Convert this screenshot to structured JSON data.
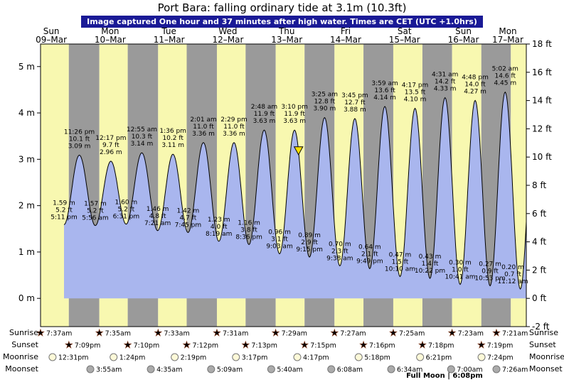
{
  "title": "Port Bara: falling  ordinary tide at 3.1m (10.3ft)",
  "subtitle": "Image captured One hour and 37 minutes after high water. Times are CET (UTC +1.0hrs)",
  "full_moon": "Full Moon | 6:08pm",
  "row_labels": {
    "sunrise": "Sunrise",
    "sunset": "Sunset",
    "moonrise": "Moonrise",
    "moonset": "Moonset"
  },
  "almanac": {
    "sunrise": [
      "7:37am",
      "7:35am",
      "7:33am",
      "7:31am",
      "7:29am",
      "7:27am",
      "7:25am",
      "7:23am",
      "7:21am"
    ],
    "sunset": [
      "7:09pm",
      "7:10pm",
      "7:12pm",
      "7:13pm",
      "7:15pm",
      "7:16pm",
      "7:18pm",
      "7:19pm"
    ],
    "moonrise": [
      "12:31pm",
      "1:24pm",
      "2:19pm",
      "3:17pm",
      "4:17pm",
      "5:18pm",
      "6:21pm",
      "7:24pm"
    ],
    "moonset": [
      "3:55am",
      "4:35am",
      "5:09am",
      "5:40am",
      "6:08am",
      "6:34am",
      "7:00am",
      "7:26am"
    ]
  },
  "chart_data": {
    "type": "area",
    "title": "Port Bara: falling ordinary tide at 3.1m (10.3ft)",
    "day_headers": [
      {
        "dow": "Sun",
        "date": "09–Mar"
      },
      {
        "dow": "Mon",
        "date": "10–Mar"
      },
      {
        "dow": "Tue",
        "date": "11–Mar"
      },
      {
        "dow": "Wed",
        "date": "12–Mar"
      },
      {
        "dow": "Thu",
        "date": "13–Mar"
      },
      {
        "dow": "Fri",
        "date": "14–Mar"
      },
      {
        "dow": "Sat",
        "date": "15–Mar"
      },
      {
        "dow": "Sun",
        "date": "16–Mar"
      },
      {
        "dow": "Mon",
        "date": "17–Mar"
      }
    ],
    "y_left": {
      "unit": "m",
      "ticks": [
        0,
        1,
        2,
        3,
        4,
        5
      ]
    },
    "y_right": {
      "unit": "ft",
      "ticks": [
        -2,
        0,
        2,
        4,
        6,
        8,
        10,
        12,
        14,
        16,
        18
      ]
    },
    "tide_events": [
      {
        "kind": "low",
        "day": 0,
        "time": "5:11 pm",
        "m": "1.59 m",
        "ft": "5.2 ft"
      },
      {
        "kind": "high",
        "day": 0,
        "time": "11:26 pm",
        "m": "3.09 m",
        "ft": "10.1 ft"
      },
      {
        "kind": "low",
        "day": 1,
        "time": "5:56 am",
        "m": "1.57 m",
        "ft": "5.2 ft"
      },
      {
        "kind": "high",
        "day": 1,
        "time": "12:17 pm",
        "m": "2.96 m",
        "ft": "9.7 ft"
      },
      {
        "kind": "low",
        "day": 1,
        "time": "6:31 pm",
        "m": "1.60 m",
        "ft": "5.2 ft"
      },
      {
        "kind": "high",
        "day": 2,
        "time": "12:55 am",
        "m": "3.14 m",
        "ft": "10.3 ft"
      },
      {
        "kind": "low",
        "day": 2,
        "time": "7:21 am",
        "m": "1.46 m",
        "ft": "4.8 ft"
      },
      {
        "kind": "high",
        "day": 2,
        "time": "1:36 pm",
        "m": "3.11 m",
        "ft": "10.2 ft"
      },
      {
        "kind": "low",
        "day": 2,
        "time": "7:45 pm",
        "m": "1.42 m",
        "ft": "4.7 ft"
      },
      {
        "kind": "high",
        "day": 3,
        "time": "2:01 am",
        "m": "3.36 m",
        "ft": "11.0 ft"
      },
      {
        "kind": "low",
        "day": 3,
        "time": "8:19 am",
        "m": "1.23 m",
        "ft": "4.0 ft"
      },
      {
        "kind": "high",
        "day": 3,
        "time": "2:29 pm",
        "m": "3.36 m",
        "ft": "11.0 ft"
      },
      {
        "kind": "low",
        "day": 3,
        "time": "8:36 pm",
        "m": "1.16 m",
        "ft": "3.8 ft"
      },
      {
        "kind": "high",
        "day": 4,
        "time": "2:48 am",
        "m": "3.63 m",
        "ft": "11.9 ft"
      },
      {
        "kind": "low",
        "day": 4,
        "time": "9:03 am",
        "m": "0.96 m",
        "ft": "3.1 ft"
      },
      {
        "kind": "high",
        "day": 4,
        "time": "3:10 pm",
        "m": "3.63 m",
        "ft": "11.9 ft"
      },
      {
        "kind": "low",
        "day": 4,
        "time": "9:15 pm",
        "m": "0.89 m",
        "ft": "2.9 ft"
      },
      {
        "kind": "high",
        "day": 5,
        "time": "3:25 am",
        "m": "3.90 m",
        "ft": "12.8 ft"
      },
      {
        "kind": "low",
        "day": 5,
        "time": "9:38 am",
        "m": "0.70 m",
        "ft": "2.3 ft"
      },
      {
        "kind": "high",
        "day": 5,
        "time": "3:45 pm",
        "m": "3.88 m",
        "ft": "12.7 ft"
      },
      {
        "kind": "low",
        "day": 5,
        "time": "9:49 pm",
        "m": "0.64 m",
        "ft": "2.1 ft"
      },
      {
        "kind": "high",
        "day": 6,
        "time": "3:59 am",
        "m": "4.14 m",
        "ft": "13.6 ft"
      },
      {
        "kind": "low",
        "day": 6,
        "time": "10:10 am",
        "m": "0.47 m",
        "ft": "1.5 ft"
      },
      {
        "kind": "high",
        "day": 6,
        "time": "4:17 pm",
        "m": "4.10 m",
        "ft": "13.5 ft"
      },
      {
        "kind": "low",
        "day": 6,
        "time": "10:22 pm",
        "m": "0.43 m",
        "ft": "1.4 ft"
      },
      {
        "kind": "high",
        "day": 7,
        "time": "4:31 am",
        "m": "4.33 m",
        "ft": "14.2 ft"
      },
      {
        "kind": "low",
        "day": 7,
        "time": "10:41 am",
        "m": "0.30 m",
        "ft": "1.0 ft"
      },
      {
        "kind": "high",
        "day": 7,
        "time": "4:48 pm",
        "m": "4.27 m",
        "ft": "14.0 ft"
      },
      {
        "kind": "low",
        "day": 7,
        "time": "10:53 pm",
        "m": "0.27 m",
        "ft": "0.9 ft"
      },
      {
        "kind": "high",
        "day": 8,
        "time": "5:02 am",
        "m": "4.45 m",
        "ft": "14.6 ft"
      },
      {
        "kind": "low",
        "day": 8,
        "time": "11:12 am",
        "m": "0.20 m",
        "ft": "0.7 ft"
      }
    ],
    "current_marker": {
      "level_m": 3.1,
      "day": 4,
      "time": "4:47 pm",
      "note": "1h37m after high water"
    },
    "colors": {
      "day_band": "#f8f8b0",
      "night_band": "#9a9a9a",
      "tide_fill": "#a9b6ee",
      "tide_outline": "#000000",
      "marker_fill": "#ffdf00",
      "day_label": "#cc1111",
      "subtitle_bg": "#1a1a96",
      "sunrise_icon": "#ffd24a",
      "sunset_icon": "#e0391a",
      "moonrise_icon": "#fdf9d8",
      "moonset_icon": "#ababab"
    }
  }
}
